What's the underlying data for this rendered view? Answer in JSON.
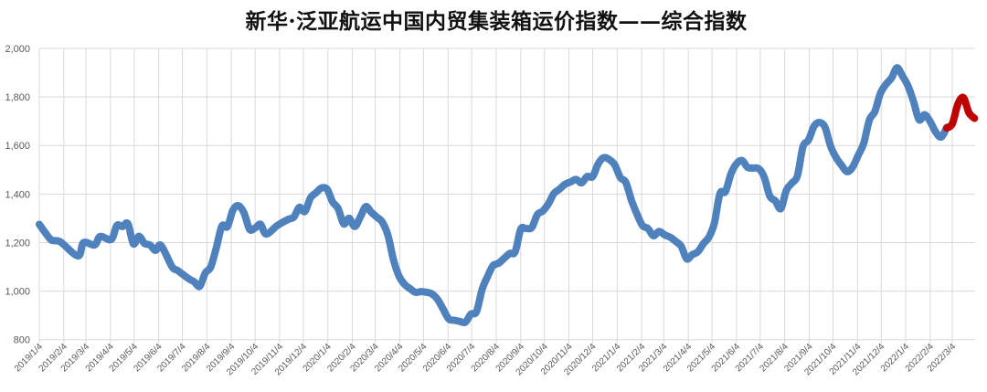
{
  "chart_data": {
    "type": "line",
    "title": "新华·泛亚航运中国内贸集装箱运价指数——综合指数",
    "xlabel": "",
    "ylabel": "",
    "ylim": [
      800,
      2000
    ],
    "yticks": [
      {
        "value": 2000,
        "label": "2,000"
      },
      {
        "value": 1800,
        "label": "1,800"
      },
      {
        "value": 1600,
        "label": "1,600"
      },
      {
        "value": 1400,
        "label": "1,400"
      },
      {
        "value": 1200,
        "label": "1,200"
      },
      {
        "value": 1000,
        "label": "1,000"
      },
      {
        "value": 800,
        "label": "800"
      }
    ],
    "xticks": [
      "2019/1/4",
      "2019/2/4",
      "2019/3/4",
      "2019/4/4",
      "2019/5/4",
      "2019/6/4",
      "2019/7/4",
      "2019/8/4",
      "2019/9/4",
      "2019/10/4",
      "2019/11/4",
      "2019/12/4",
      "2020/1/4",
      "2020/2/4",
      "2020/3/4",
      "2020/4/4",
      "2020/5/4",
      "2020/6/4",
      "2020/7/4",
      "2020/8/4",
      "2020/9/4",
      "2020/10/4",
      "2020/11/4",
      "2020/12/4",
      "2021/1/4",
      "2021/2/4",
      "2021/3/4",
      "2021/4/4",
      "2021/5/4",
      "2021/6/4",
      "2021/7/4",
      "2021/8/4",
      "2021/9/4",
      "2021/10/4",
      "2021/11/4",
      "2021/12/4",
      "2022/1/4",
      "2022/2/4",
      "2022/3/4"
    ],
    "grid": true,
    "legend": null,
    "series": [
      {
        "name": "",
        "color": "#4F81BD",
        "x": [
          "2019-01-04",
          "2019-01-18",
          "2019-01-25",
          "2019-02-01",
          "2019-02-22",
          "2019-03-01",
          "2019-03-15",
          "2019-03-22",
          "2019-04-05",
          "2019-04-12",
          "2019-04-19",
          "2019-04-26",
          "2019-05-03",
          "2019-05-10",
          "2019-05-17",
          "2019-05-24",
          "2019-05-31",
          "2019-06-07",
          "2019-06-21",
          "2019-06-28",
          "2019-07-12",
          "2019-07-19",
          "2019-07-26",
          "2019-08-02",
          "2019-08-09",
          "2019-08-16",
          "2019-08-23",
          "2019-08-30",
          "2019-09-06",
          "2019-09-13",
          "2019-09-20",
          "2019-09-27",
          "2019-10-04",
          "2019-10-11",
          "2019-10-18",
          "2019-11-01",
          "2019-11-15",
          "2019-11-22",
          "2019-11-29",
          "2019-12-06",
          "2019-12-13",
          "2019-12-20",
          "2019-12-27",
          "2020-01-03",
          "2020-01-10",
          "2020-01-17",
          "2020-01-24",
          "2020-01-31",
          "2020-02-07",
          "2020-02-14",
          "2020-02-21",
          "2020-02-28",
          "2020-03-06",
          "2020-03-13",
          "2020-03-20",
          "2020-03-27",
          "2020-04-03",
          "2020-04-10",
          "2020-04-17",
          "2020-04-24",
          "2020-05-01",
          "2020-05-08",
          "2020-05-15",
          "2020-05-22",
          "2020-05-29",
          "2020-06-05",
          "2020-06-12",
          "2020-06-19",
          "2020-06-26",
          "2020-07-03",
          "2020-07-10",
          "2020-07-17",
          "2020-07-24",
          "2020-07-31",
          "2020-08-07",
          "2020-08-14",
          "2020-08-21",
          "2020-08-28",
          "2020-09-04",
          "2020-09-11",
          "2020-09-18",
          "2020-09-25",
          "2020-10-02",
          "2020-10-09",
          "2020-10-16",
          "2020-10-23",
          "2020-10-30",
          "2020-11-06",
          "2020-11-13",
          "2020-11-20",
          "2020-11-27",
          "2020-12-04",
          "2020-12-11",
          "2020-12-18",
          "2020-12-25",
          "2021-01-01",
          "2021-01-08",
          "2021-01-15",
          "2021-01-22",
          "2021-01-29",
          "2021-02-05",
          "2021-02-12",
          "2021-02-19",
          "2021-02-26",
          "2021-03-05",
          "2021-03-12",
          "2021-03-19",
          "2021-03-26",
          "2021-04-02",
          "2021-04-09",
          "2021-04-16",
          "2021-04-23",
          "2021-04-30",
          "2021-05-07",
          "2021-05-14",
          "2021-05-21",
          "2021-05-28",
          "2021-06-04",
          "2021-06-11",
          "2021-06-18",
          "2021-06-25",
          "2021-07-02",
          "2021-07-09",
          "2021-07-16",
          "2021-07-23",
          "2021-07-30",
          "2021-08-06",
          "2021-08-13",
          "2021-08-20",
          "2021-08-27",
          "2021-09-03",
          "2021-09-10",
          "2021-09-17",
          "2021-09-24",
          "2021-10-01",
          "2021-10-08",
          "2021-10-15",
          "2021-10-22",
          "2021-10-29",
          "2021-11-05",
          "2021-11-12",
          "2021-11-19",
          "2021-11-26",
          "2021-12-03",
          "2021-12-10",
          "2021-12-17",
          "2021-12-24",
          "2021-12-31",
          "2022-01-07",
          "2022-01-14",
          "2022-01-21",
          "2022-01-28",
          "2022-02-04",
          "2022-02-11",
          "2022-02-18",
          "2022-02-25"
        ],
        "values": [
          1275,
          1214,
          1208,
          1200,
          1145,
          1200,
          1190,
          1225,
          1213,
          1270,
          1266,
          1278,
          1195,
          1226,
          1197,
          1190,
          1168,
          1188,
          1100,
          1085,
          1051,
          1038,
          1020,
          1075,
          1100,
          1180,
          1268,
          1266,
          1334,
          1352,
          1322,
          1255,
          1260,
          1275,
          1235,
          1270,
          1296,
          1305,
          1345,
          1328,
          1384,
          1405,
          1425,
          1420,
          1368,
          1340,
          1277,
          1300,
          1266,
          1305,
          1348,
          1325,
          1305,
          1284,
          1230,
          1130,
          1062,
          1028,
          1010,
          995,
          998,
          995,
          988,
          965,
          925,
          885,
          880,
          875,
          872,
          905,
          915,
          1005,
          1060,
          1105,
          1115,
          1135,
          1155,
          1162,
          1255,
          1258,
          1262,
          1315,
          1330,
          1360,
          1402,
          1420,
          1440,
          1450,
          1460,
          1446,
          1472,
          1472,
          1525,
          1550,
          1542,
          1520,
          1468,
          1448,
          1375,
          1318,
          1270,
          1258,
          1228,
          1246,
          1232,
          1222,
          1205,
          1185,
          1133,
          1150,
          1162,
          1195,
          1222,
          1280,
          1402,
          1410,
          1484,
          1525,
          1538,
          1510,
          1507,
          1505,
          1470,
          1392,
          1372,
          1340,
          1415,
          1445,
          1475,
          1595,
          1622,
          1679,
          1695,
          1675,
          1597,
          1550,
          1518,
          1492,
          1512,
          1560,
          1610,
          1705,
          1740,
          1815,
          1852,
          1878,
          1920,
          1886,
          1845,
          1780,
          1706,
          1727,
          1698,
          1655,
          1635,
          1675
        ]
      },
      {
        "name": "",
        "color": "#C00000",
        "x": [
          "2022-02-25",
          "2022-03-04",
          "2022-03-11",
          "2022-03-18",
          "2022-03-25",
          "2022-04-01"
        ],
        "values": [
          1672,
          1690,
          1770,
          1797,
          1735,
          1712
        ]
      }
    ]
  }
}
